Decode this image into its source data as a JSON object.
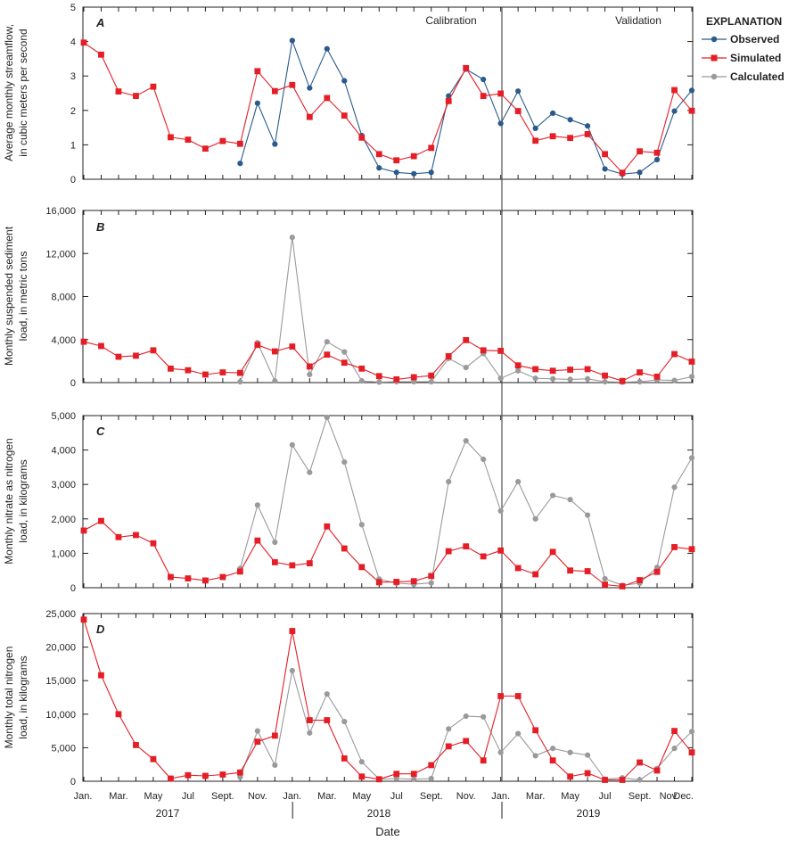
{
  "legend": {
    "title": "EXPLANATION",
    "items": [
      {
        "key": "observed",
        "label": "Observed"
      },
      {
        "key": "simulated",
        "label": "Simulated"
      },
      {
        "key": "calculated",
        "label": "Calculated"
      }
    ]
  },
  "colors": {
    "observed": "#2a5b8c",
    "simulated": "#e41e26",
    "calculated": "#9a9a9a",
    "axis": "#231f20",
    "divider": "#555555"
  },
  "xaxis": {
    "title": "Date",
    "month_ticks": [
      {
        "label": "Jan.",
        "i": 0
      },
      {
        "label": "Mar.",
        "i": 2
      },
      {
        "label": "May",
        "i": 4
      },
      {
        "label": "Jul",
        "i": 6
      },
      {
        "label": "Sept.",
        "i": 8
      },
      {
        "label": "Nov.",
        "i": 10
      },
      {
        "label": "Jan.",
        "i": 12
      },
      {
        "label": "Mar.",
        "i": 14
      },
      {
        "label": "May",
        "i": 16
      },
      {
        "label": "Jul",
        "i": 18
      },
      {
        "label": "Sept.",
        "i": 20
      },
      {
        "label": "Nov.",
        "i": 22
      },
      {
        "label": "Jan.",
        "i": 24
      },
      {
        "label": "Mar.",
        "i": 26
      },
      {
        "label": "May",
        "i": 28
      },
      {
        "label": "Jul",
        "i": 30
      },
      {
        "label": "Sept.",
        "i": 32
      },
      {
        "label": "Nov.",
        "i": 34
      },
      {
        "label": "Dec.",
        "i": 35
      }
    ],
    "years": [
      {
        "label": "2017",
        "center": 5.0
      },
      {
        "label": "2018",
        "center": 17.5
      },
      {
        "label": "2019",
        "center": 29.5
      }
    ],
    "year_dividers": [
      12,
      24
    ]
  },
  "chart_data": [
    {
      "type": "line",
      "panel": "A",
      "ylabel": [
        "Average monthly streamflow,",
        "in cubic meters per second"
      ],
      "ylim": [
        0,
        5
      ],
      "yticks": [
        "0",
        "1",
        "2",
        "3",
        "4",
        "5"
      ],
      "yticks_values": [
        0,
        1,
        2,
        3,
        4,
        5
      ],
      "calibration_label": "Calibration",
      "validation_label": "Validation",
      "series": [
        {
          "name": "Simulated",
          "key": "simulated",
          "start": 0,
          "values": [
            3.97,
            3.62,
            2.55,
            2.42,
            2.69,
            1.22,
            1.15,
            0.89,
            1.11,
            1.03,
            3.14,
            2.56,
            2.74,
            1.81,
            2.36,
            1.85,
            1.21,
            0.73,
            0.55,
            0.67,
            0.91,
            2.27,
            3.23,
            2.42,
            2.49,
            1.98,
            1.12,
            1.25,
            1.2,
            1.31,
            0.73,
            0.19,
            0.81,
            0.77,
            2.59,
            1.99
          ]
        },
        {
          "name": "Observed",
          "key": "observed",
          "start": 9,
          "values": [
            0.46,
            2.21,
            1.02,
            4.03,
            2.65,
            3.79,
            2.86,
            1.27,
            0.33,
            0.2,
            0.16,
            0.2,
            2.42,
            3.2,
            2.9,
            1.62,
            2.56,
            1.48,
            1.92,
            1.73,
            1.55,
            0.3,
            0.15,
            0.2,
            0.57,
            1.98,
            2.58
          ]
        }
      ]
    },
    {
      "type": "line",
      "panel": "B",
      "ylabel": [
        "Monthly suspended sediment",
        "load, in metric tons"
      ],
      "ylim": [
        0,
        16000
      ],
      "yticks": [
        "0",
        "4,000",
        "8,000",
        "12,000",
        "16,000"
      ],
      "yticks_values": [
        0,
        4000,
        8000,
        12000,
        16000
      ],
      "series": [
        {
          "name": "Simulated",
          "key": "simulated",
          "start": 0,
          "values": [
            3800,
            3400,
            2400,
            2500,
            3000,
            1300,
            1150,
            750,
            950,
            900,
            3500,
            2900,
            3350,
            1500,
            2600,
            1850,
            1300,
            600,
            300,
            500,
            650,
            2450,
            3950,
            3000,
            2950,
            1600,
            1250,
            1100,
            1200,
            1250,
            650,
            150,
            950,
            550,
            2650,
            1950
          ]
        },
        {
          "name": "Calculated",
          "key": "calculated",
          "start": 9,
          "values": [
            80,
            3700,
            150,
            13500,
            750,
            3800,
            2850,
            150,
            50,
            80,
            80,
            80,
            2250,
            1400,
            2700,
            400,
            1100,
            400,
            350,
            300,
            350,
            80,
            40,
            80,
            250,
            200,
            550
          ]
        }
      ]
    },
    {
      "type": "line",
      "panel": "C",
      "ylabel": [
        "Monthly nitrate as nitrogen",
        "load, in kilograms"
      ],
      "ylim": [
        0,
        5000
      ],
      "yticks": [
        "0",
        "1,000",
        "2,000",
        "3,000",
        "4,000",
        "5,000"
      ],
      "yticks_values": [
        0,
        1000,
        2000,
        3000,
        4000,
        5000
      ],
      "series": [
        {
          "name": "Simulated",
          "key": "simulated",
          "start": 0,
          "values": [
            1660,
            1940,
            1470,
            1530,
            1290,
            310,
            270,
            210,
            310,
            470,
            1370,
            740,
            650,
            710,
            1780,
            1140,
            600,
            160,
            170,
            190,
            340,
            1060,
            1200,
            910,
            1080,
            570,
            390,
            1040,
            500,
            480,
            90,
            40,
            220,
            460,
            1180,
            1120
          ]
        },
        {
          "name": "Calculated",
          "key": "calculated",
          "start": 9,
          "values": [
            560,
            2400,
            1320,
            4150,
            3350,
            4950,
            3650,
            1830,
            250,
            130,
            100,
            140,
            3080,
            4270,
            3730,
            2230,
            3080,
            2000,
            2680,
            2560,
            2110,
            260,
            70,
            130,
            590,
            2920,
            3770
          ]
        }
      ]
    },
    {
      "type": "line",
      "panel": "D",
      "ylabel": [
        "Monthly total nitrogen",
        "load, in kilograms"
      ],
      "ylim": [
        0,
        25000
      ],
      "yticks": [
        "0",
        "5,000",
        "10,000",
        "15,000",
        "20,000",
        "25,000"
      ],
      "yticks_values": [
        0,
        5000,
        10000,
        15000,
        20000,
        25000
      ],
      "series": [
        {
          "name": "Simulated",
          "key": "simulated",
          "start": 0,
          "values": [
            24100,
            15800,
            10000,
            5400,
            3300,
            400,
            900,
            800,
            1000,
            1300,
            5900,
            6800,
            22400,
            9100,
            9100,
            3400,
            700,
            300,
            1100,
            1100,
            2400,
            5200,
            6000,
            3100,
            12700,
            12700,
            7600,
            3100,
            700,
            1200,
            200,
            200,
            2800,
            1600,
            7500,
            4300
          ]
        },
        {
          "name": "Calculated",
          "key": "calculated",
          "start": 9,
          "values": [
            600,
            7500,
            2400,
            16500,
            7200,
            13000,
            8900,
            2900,
            300,
            400,
            300,
            400,
            7800,
            9700,
            9600,
            4300,
            7100,
            3800,
            4900,
            4300,
            3900,
            300,
            500,
            200,
            1900,
            4900,
            7400
          ]
        }
      ]
    }
  ]
}
